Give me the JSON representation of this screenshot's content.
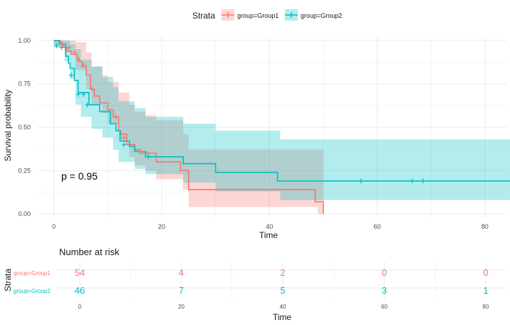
{
  "colors": {
    "group1": "#F8766D",
    "group2": "#00BFC4",
    "grid": "#EBEBEB",
    "text": "#1a1a1a",
    "tick": "#4d4d4d"
  },
  "legend": {
    "title": "Strata",
    "entries": [
      "group=Group1",
      "group=Group2"
    ]
  },
  "chart_data": [
    {
      "type": "line",
      "subtype": "kaplan-meier",
      "xlabel": "Time",
      "ylabel": "Survival probability",
      "xlim": [
        -3,
        84
      ],
      "ylim": [
        -0.02,
        1.02
      ],
      "xticks": [
        0,
        20,
        40,
        60,
        80
      ],
      "yticks": [
        0.0,
        0.25,
        0.5,
        0.75,
        1.0
      ],
      "ytick_labels": [
        "0.00",
        "0.25",
        "0.50",
        "0.75",
        "1.00"
      ],
      "grid": true,
      "legend_position": "top",
      "annotation": "p = 0.95",
      "series": [
        {
          "name": "group=Group1",
          "steps": [
            [
              0,
              1.0
            ],
            [
              1.2,
              0.98
            ],
            [
              1.8,
              0.96
            ],
            [
              2.4,
              0.94
            ],
            [
              3.2,
              0.92
            ],
            [
              4.3,
              0.9
            ],
            [
              4.6,
              0.88
            ],
            [
              5.2,
              0.85
            ],
            [
              6.0,
              0.8
            ],
            [
              6.8,
              0.72
            ],
            [
              7.5,
              0.68
            ],
            [
              8.5,
              0.64
            ],
            [
              10.0,
              0.6
            ],
            [
              11.0,
              0.56
            ],
            [
              12.0,
              0.48
            ],
            [
              12.4,
              0.46
            ],
            [
              13.5,
              0.4
            ],
            [
              15.0,
              0.37
            ],
            [
              16.0,
              0.35
            ],
            [
              19.0,
              0.3
            ],
            [
              23.5,
              0.25
            ],
            [
              25.0,
              0.14
            ],
            [
              48.5,
              0.07
            ],
            [
              50.0,
              0.0
            ]
          ],
          "censored": [
            [
              1.5,
              0.98
            ],
            [
              2.8,
              0.96
            ],
            [
              3.8,
              0.93
            ],
            [
              4.5,
              0.89
            ],
            [
              5.5,
              0.86
            ],
            [
              7.0,
              0.72
            ],
            [
              11.5,
              0.56
            ],
            [
              13.0,
              0.44
            ],
            [
              16.0,
              0.36
            ],
            [
              17.5,
              0.35
            ]
          ],
          "ci_upper": [
            [
              0,
              1.0
            ],
            [
              2,
              1.0
            ],
            [
              4,
              0.99
            ],
            [
              6,
              0.93
            ],
            [
              7,
              0.85
            ],
            [
              9,
              0.8
            ],
            [
              10,
              0.76
            ],
            [
              12,
              0.7
            ],
            [
              14,
              0.63
            ],
            [
              15,
              0.59
            ],
            [
              17,
              0.57
            ],
            [
              19,
              0.54
            ],
            [
              24,
              0.46
            ],
            [
              25,
              0.37
            ],
            [
              49,
              0.37
            ],
            [
              50,
              0.37
            ]
          ],
          "ci_lower": [
            [
              0,
              0.97
            ],
            [
              2,
              0.93
            ],
            [
              4,
              0.83
            ],
            [
              6,
              0.72
            ],
            [
              7,
              0.63
            ],
            [
              9,
              0.58
            ],
            [
              10,
              0.52
            ],
            [
              12,
              0.42
            ],
            [
              14,
              0.33
            ],
            [
              15,
              0.28
            ],
            [
              17,
              0.25
            ],
            [
              19,
              0.2
            ],
            [
              24,
              0.14
            ],
            [
              25,
              0.04
            ],
            [
              49,
              0.0
            ],
            [
              50,
              0.0
            ]
          ]
        },
        {
          "name": "group=Group2",
          "steps": [
            [
              0,
              1.0
            ],
            [
              1.0,
              0.98
            ],
            [
              2.2,
              0.91
            ],
            [
              2.7,
              0.87
            ],
            [
              3.0,
              0.84
            ],
            [
              3.8,
              0.77
            ],
            [
              4.5,
              0.7
            ],
            [
              6.5,
              0.63
            ],
            [
              8.5,
              0.59
            ],
            [
              10.5,
              0.52
            ],
            [
              11.5,
              0.48
            ],
            [
              12.3,
              0.42
            ],
            [
              14.0,
              0.39
            ],
            [
              15.0,
              0.36
            ],
            [
              17.0,
              0.33
            ],
            [
              24.0,
              0.29
            ],
            [
              30.0,
              0.24
            ],
            [
              41.5,
              0.19
            ],
            [
              85.0,
              0.19
            ]
          ],
          "censored": [
            [
              0.5,
              0.97
            ],
            [
              1.4,
              0.96
            ],
            [
              3.2,
              0.8
            ],
            [
              4.5,
              0.69
            ],
            [
              5.5,
              0.69
            ],
            [
              6.2,
              0.63
            ],
            [
              13.0,
              0.4
            ],
            [
              17.5,
              0.33
            ],
            [
              57.0,
              0.19
            ],
            [
              66.5,
              0.19
            ],
            [
              68.5,
              0.19
            ]
          ],
          "ci_upper": [
            [
              0,
              1.0
            ],
            [
              2,
              1.0
            ],
            [
              3,
              0.98
            ],
            [
              4,
              0.95
            ],
            [
              5,
              0.89
            ],
            [
              7,
              0.85
            ],
            [
              9,
              0.79
            ],
            [
              11,
              0.73
            ],
            [
              12,
              0.65
            ],
            [
              15,
              0.61
            ],
            [
              17,
              0.56
            ],
            [
              24,
              0.52
            ],
            [
              30,
              0.48
            ],
            [
              42,
              0.43
            ],
            [
              85,
              0.43
            ]
          ],
          "ci_lower": [
            [
              0,
              0.96
            ],
            [
              2,
              0.88
            ],
            [
              3,
              0.78
            ],
            [
              4,
              0.63
            ],
            [
              5,
              0.56
            ],
            [
              7,
              0.49
            ],
            [
              9,
              0.44
            ],
            [
              11,
              0.37
            ],
            [
              12,
              0.3
            ],
            [
              15,
              0.26
            ],
            [
              17,
              0.23
            ],
            [
              24,
              0.18
            ],
            [
              30,
              0.13
            ],
            [
              42,
              0.08
            ],
            [
              85,
              0.08
            ]
          ]
        }
      ]
    },
    {
      "type": "table",
      "title": "Number at risk",
      "xlabel": "Time",
      "ylabel": "Strata",
      "xticks": [
        0,
        20,
        40,
        60,
        80
      ],
      "rows": [
        {
          "name": "group=Group1",
          "values": [
            54,
            4,
            2,
            0,
            0
          ]
        },
        {
          "name": "group=Group2",
          "values": [
            46,
            7,
            5,
            3,
            1
          ]
        }
      ]
    }
  ]
}
